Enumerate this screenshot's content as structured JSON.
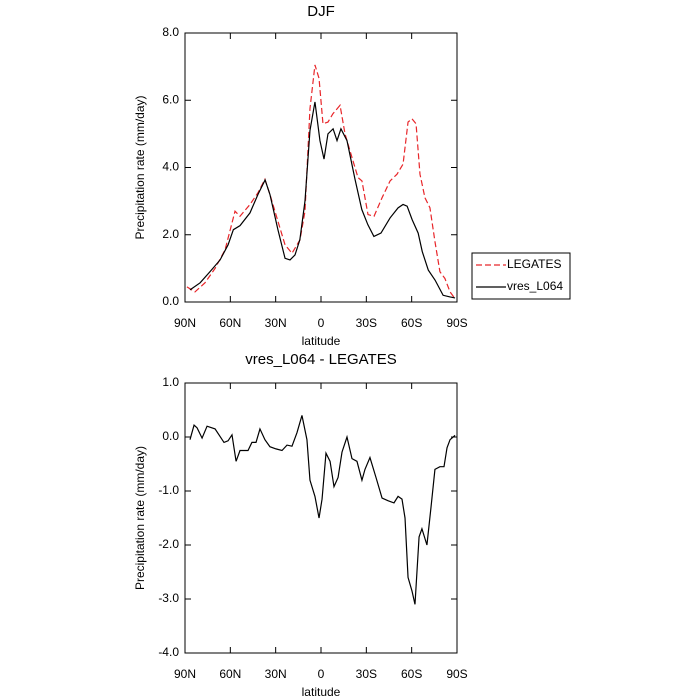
{
  "chart_data": [
    {
      "type": "line",
      "title": "DJF",
      "xlabel": "latitude",
      "ylabel": "Precipitation rate (mm/day)",
      "xlim": [
        90,
        -90
      ],
      "ylim": [
        0,
        8
      ],
      "xticks": [
        {
          "value": 90,
          "label": "90N"
        },
        {
          "value": 60,
          "label": "60N"
        },
        {
          "value": 30,
          "label": "30N"
        },
        {
          "value": 0,
          "label": "0"
        },
        {
          "value": -30,
          "label": "30S"
        },
        {
          "value": -60,
          "label": "60S"
        },
        {
          "value": -90,
          "label": "90S"
        }
      ],
      "yticks": [
        {
          "value": 0,
          "label": "0.0"
        },
        {
          "value": 2,
          "label": "2.0"
        },
        {
          "value": 4,
          "label": "4.0"
        },
        {
          "value": 6,
          "label": "6.0"
        },
        {
          "value": 8,
          "label": "8.0"
        }
      ],
      "legend": "right",
      "series": [
        {
          "name": "LEGATES",
          "color": "#e8262a",
          "linestyle": "dashed",
          "x": [
            88.7,
            83.4,
            76.8,
            70.1,
            63.5,
            56.9,
            53.6,
            47,
            41.7,
            37.1,
            33.8,
            28.5,
            23.8,
            19.2,
            13.9,
            10.6,
            7.3,
            4,
            1.3,
            -1.3,
            -4.6,
            -7.9,
            -12.6,
            -15.9,
            -20.5,
            -24.5,
            -27.1,
            -31.1,
            -35.1,
            -40.4,
            -45.7,
            -50.3,
            -54.3,
            -57.6,
            -60.2,
            -62.9,
            -65.5,
            -68.8,
            -72.1,
            -75.4,
            -78.7,
            -82,
            -85.4,
            -88.7
          ],
          "values": [
            0.45,
            0.3,
            0.57,
            1.0,
            1.55,
            2.7,
            2.55,
            2.9,
            3.25,
            3.65,
            3.2,
            2.4,
            1.7,
            1.45,
            1.85,
            2.7,
            5.75,
            7.05,
            6.65,
            5.3,
            5.35,
            5.6,
            5.85,
            5.0,
            4.3,
            3.7,
            3.6,
            2.6,
            2.55,
            3.1,
            3.6,
            3.8,
            4.1,
            5.35,
            5.45,
            5.3,
            3.8,
            3.1,
            2.8,
            1.8,
            0.9,
            0.7,
            0.3,
            0.1
          ]
        },
        {
          "name": "vres_L064",
          "color": "#000000",
          "linestyle": "solid",
          "x": [
            86.7,
            80,
            73.5,
            66.8,
            61.5,
            58,
            53.6,
            47,
            41.7,
            37,
            33.8,
            28.5,
            23.8,
            20.5,
            17.2,
            14,
            10.6,
            7.3,
            4,
            0.7,
            -2,
            -4.6,
            -8,
            -10.6,
            -13.2,
            -17.2,
            -22.5,
            -27,
            -31,
            -35,
            -39.7,
            -45.7,
            -51,
            -54.3,
            -57,
            -60.3,
            -64.3,
            -67,
            -71,
            -75.5,
            -80.8,
            -85.4,
            -88.7
          ],
          "values": [
            0.36,
            0.57,
            0.9,
            1.25,
            1.7,
            2.15,
            2.27,
            2.65,
            3.2,
            3.63,
            3.2,
            2.15,
            1.3,
            1.25,
            1.4,
            1.85,
            3.0,
            5.1,
            5.95,
            4.8,
            4.25,
            5.0,
            5.15,
            4.8,
            5.15,
            4.8,
            3.65,
            2.75,
            2.3,
            1.95,
            2.05,
            2.5,
            2.8,
            2.9,
            2.85,
            2.45,
            2.05,
            1.5,
            0.95,
            0.65,
            0.2,
            0.15,
            0.12
          ]
        }
      ]
    },
    {
      "type": "line",
      "title": "vres_L064 - LEGATES",
      "xlabel": "latitude",
      "ylabel": "Precipitation rate (mm/day)",
      "xlim": [
        90,
        -90
      ],
      "ylim": [
        -4,
        1
      ],
      "xticks": [
        {
          "value": 90,
          "label": "90N"
        },
        {
          "value": 60,
          "label": "60N"
        },
        {
          "value": 30,
          "label": "30N"
        },
        {
          "value": 0,
          "label": "0"
        },
        {
          "value": -30,
          "label": "30S"
        },
        {
          "value": -60,
          "label": "60S"
        },
        {
          "value": -90,
          "label": "90S"
        }
      ],
      "yticks": [
        {
          "value": -4,
          "label": "-4.0"
        },
        {
          "value": -3,
          "label": "-3.0"
        },
        {
          "value": -2,
          "label": "-2.0"
        },
        {
          "value": -1,
          "label": "-1.0"
        },
        {
          "value": 0,
          "label": "0.0"
        },
        {
          "value": 1,
          "label": "1.0"
        }
      ],
      "series": [
        {
          "color": "#000000",
          "linestyle": "solid",
          "x": [
            86.7,
            84,
            82,
            78.7,
            75.4,
            70.1,
            64.2,
            61.5,
            58.9,
            56.2,
            53.6,
            48.3,
            45.7,
            43,
            40.4,
            37.1,
            33.8,
            29.8,
            25.8,
            22.5,
            19.2,
            15.9,
            12.6,
            9.3,
            7.3,
            4,
            1.3,
            -0.7,
            -3.3,
            -6,
            -8.6,
            -11.3,
            -13.9,
            -17.2,
            -20.5,
            -23.8,
            -27.1,
            -29.1,
            -32.4,
            -36.4,
            -40.4,
            -44.3,
            -48.3,
            -51,
            -53.6,
            -55.6,
            -57.6,
            -60.2,
            -62.2,
            -64.9,
            -66.8,
            -70.1,
            -72.8,
            -75.4,
            -78.7,
            -81.4,
            -83.4,
            -85.4,
            -88.7
          ],
          "values": [
            -0.05,
            0.22,
            0.17,
            -0.02,
            0.2,
            0.15,
            -0.1,
            -0.07,
            0.04,
            -0.45,
            -0.25,
            -0.25,
            -0.1,
            -0.1,
            0.15,
            -0.05,
            -0.18,
            -0.22,
            -0.25,
            -0.15,
            -0.17,
            0.08,
            0.4,
            -0.05,
            -0.8,
            -1.1,
            -1.5,
            -1.15,
            -0.3,
            -0.45,
            -0.92,
            -0.75,
            -0.28,
            0.0,
            -0.4,
            -0.45,
            -0.8,
            -0.6,
            -0.38,
            -0.75,
            -1.13,
            -1.18,
            -1.22,
            -1.1,
            -1.15,
            -1.5,
            -2.6,
            -2.85,
            -3.1,
            -1.85,
            -1.7,
            -2.0,
            -1.3,
            -0.6,
            -0.55,
            -0.55,
            -0.2,
            -0.05,
            0.03
          ]
        }
      ]
    }
  ]
}
